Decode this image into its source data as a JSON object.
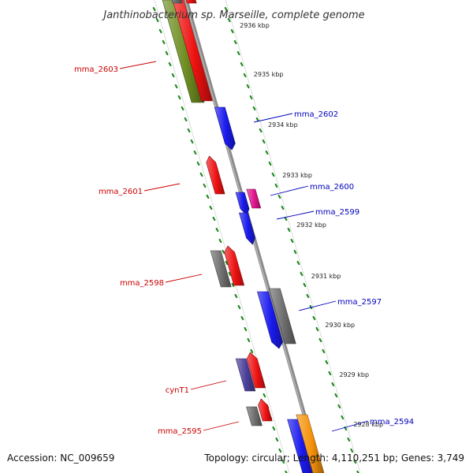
{
  "title": "Janthinobacterium sp. Marseille, complete genome",
  "footer": {
    "accession": "Accession: NC_009659",
    "topology": "Topology: circular; Length: 4,110,251 bp; Genes: 3,749"
  },
  "scale": {
    "unit": "kbp",
    "ticks": [
      {
        "kbp": 2936,
        "label": "2936 kbp"
      },
      {
        "kbp": 2935,
        "label": "2935 kbp"
      },
      {
        "kbp": 2934,
        "label": "2934 kbp"
      },
      {
        "kbp": 2933,
        "label": "2933 kbp"
      },
      {
        "kbp": 2932,
        "label": "2932 kbp"
      },
      {
        "kbp": 2931,
        "label": "2931 kbp"
      },
      {
        "kbp": 2930,
        "label": "2930 kbp"
      },
      {
        "kbp": 2929,
        "label": "2929 kbp"
      },
      {
        "kbp": 2928,
        "label": "2928 kbp"
      }
    ]
  },
  "colors": {
    "backbone": "#8a8a8a",
    "ring_dots": "#1f8a1f",
    "outline": "#dddddd",
    "red": "#ee1111",
    "blue": "#1a1aee",
    "olive": "#6f8f22",
    "gray": "#6e6e6e",
    "magenta": "#e0148c",
    "purple": "#4a3f9a",
    "orange": "#f5920a",
    "label_red": "#cc0000",
    "label_blue": "#0000bb"
  },
  "labels": [
    {
      "text": "mma_2603",
      "side": "left",
      "color": "label_red"
    },
    {
      "text": "mma_2602",
      "side": "right",
      "color": "label_blue"
    },
    {
      "text": "mma_2601",
      "side": "left",
      "color": "label_red"
    },
    {
      "text": "mma_2600",
      "side": "right",
      "color": "label_blue"
    },
    {
      "text": "mma_2599",
      "side": "right",
      "color": "label_blue"
    },
    {
      "text": "mma_2598",
      "side": "left",
      "color": "label_red"
    },
    {
      "text": "mma_2597",
      "side": "right",
      "color": "label_blue"
    },
    {
      "text": "cynT1",
      "side": "left",
      "color": "label_red"
    },
    {
      "text": "mma_2595",
      "side": "left",
      "color": "label_red"
    },
    {
      "text": "mma_2594",
      "side": "right",
      "color": "label_blue"
    }
  ]
}
